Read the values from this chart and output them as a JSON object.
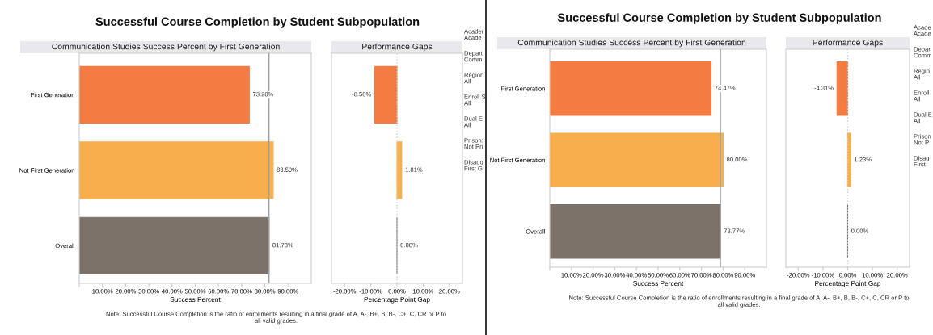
{
  "chart_data": [
    {
      "type": "bar",
      "orientation": "horizontal",
      "title": "Successful Course Completion by Student Subpopulation",
      "subtitle": "Communication Studies Success Percent by First Generation",
      "xlabel": "Success Percent",
      "categories": [
        "First Generation",
        "Not First Generation",
        "Overall"
      ],
      "values": [
        73.28,
        83.59,
        81.78
      ],
      "colors": [
        "#f47b42",
        "#f8ae4c",
        "#7c7269"
      ],
      "value_labels": [
        "73.28%",
        "83.59%",
        "81.78%"
      ],
      "xlim": [
        0,
        100
      ],
      "xticks": [
        {
          "value": 0,
          "label": null
        },
        {
          "value": 10,
          "label": "10.00%"
        },
        {
          "value": 20,
          "label": "20.00%"
        },
        {
          "value": 30,
          "label": "30.00%"
        },
        {
          "value": 40,
          "label": "40.00%"
        },
        {
          "value": 50,
          "label": "50.00%"
        },
        {
          "value": 60,
          "label": "60.00%"
        },
        {
          "value": 70,
          "label": "70.00%"
        },
        {
          "value": 80,
          "label": "80.00%"
        },
        {
          "value": 90,
          "label": "90.00%"
        }
      ],
      "ref_lines": [
        {
          "axis": "x",
          "value": 81.78,
          "color": "#a0a0a0"
        }
      ],
      "annotations": [
        "Note: Successful Course Completion is the ratio of enrollments resulting in a final grade of A, A-, B+, B, B-, C+, C, CR or P to\nall valid grades."
      ]
    },
    {
      "type": "bar",
      "orientation": "horizontal",
      "subtitle": "Performance Gaps",
      "xlabel": "Percentage Point Gap",
      "categories": [
        null,
        null,
        null
      ],
      "values": [
        -8.5,
        1.81,
        0.0
      ],
      "colors": [
        "#f47b42",
        "#f8ae4c",
        "#7c7269"
      ],
      "value_labels": [
        "-8.50%",
        "1.81%",
        "0.00%"
      ],
      "xlim": [
        -25,
        25
      ],
      "xticks": [
        {
          "value": -20,
          "label": "-20.00%"
        },
        {
          "value": -10,
          "label": "-10.00%"
        },
        {
          "value": 0,
          "label": "0.00%"
        },
        {
          "value": 10,
          "label": "10.00%"
        },
        {
          "value": 20,
          "label": "20.00%"
        }
      ],
      "ref_lines": [
        {
          "axis": "x",
          "value": 0,
          "color": "#d0d0d0",
          "line_style": "dotted"
        }
      ],
      "annotations": [
        "Acader\nAcade",
        "Depart\nComm",
        "Region\nAll",
        "Enroll S\nAll",
        "Dual E\nAll",
        "Prison:\nNot Pri",
        "Disagg\nFirst G"
      ]
    },
    {
      "type": "bar",
      "orientation": "horizontal",
      "title": "Successful Course Completion by Student Subpopulation",
      "subtitle": "Communication Studies Success Percent by First Generation",
      "xlabel": "Success Percent",
      "categories": [
        "First Generation",
        "Not First Generation",
        "Overall"
      ],
      "values": [
        74.47,
        80.0,
        78.77
      ],
      "colors": [
        "#f47b42",
        "#f8ae4c",
        "#7c7269"
      ],
      "value_labels": [
        "74.47%",
        "80.00%",
        "78.77%"
      ],
      "xlim": [
        0,
        100
      ],
      "xticks": [
        {
          "value": 0,
          "label": null
        },
        {
          "value": 10,
          "label": "10.00%"
        },
        {
          "value": 20,
          "label": "20.00%"
        },
        {
          "value": 30,
          "label": "30.00%"
        },
        {
          "value": 40,
          "label": "40.00%"
        },
        {
          "value": 50,
          "label": "50.00%"
        },
        {
          "value": 60,
          "label": "60.00%"
        },
        {
          "value": 70,
          "label": "70.00%"
        },
        {
          "value": 80,
          "label": "80.00%"
        },
        {
          "value": 90,
          "label": "90.00%"
        }
      ],
      "ref_lines": [
        {
          "axis": "x",
          "value": 78.77,
          "color": "#a0a0a0"
        }
      ],
      "annotations": [
        "Note: Successful Course Completion is the ratio of enrollments resulting in a final grade of A, A-, B+, B, B-, C+, C, CR or P to\nall valid grades."
      ]
    },
    {
      "type": "bar",
      "orientation": "horizontal",
      "subtitle": "Performance Gaps",
      "xlabel": "Percentage Point Gap",
      "categories": [
        null,
        null,
        null
      ],
      "values": [
        -4.31,
        1.23,
        0.0
      ],
      "colors": [
        "#f47b42",
        "#f8ae4c",
        "#7c7269"
      ],
      "value_labels": [
        "-4.31%",
        "1.23%",
        "0.00%"
      ],
      "xlim": [
        -25,
        25
      ],
      "xticks": [
        {
          "value": -20,
          "label": "-20.00%"
        },
        {
          "value": -10,
          "label": "-10.00%"
        },
        {
          "value": 0,
          "label": "0.00%"
        },
        {
          "value": 10,
          "label": "10.00%"
        },
        {
          "value": 20,
          "label": "20.00%"
        }
      ],
      "ref_lines": [
        {
          "axis": "x",
          "value": 0,
          "color": "#d0d0d0",
          "line_style": "dotted"
        }
      ],
      "annotations": [
        "Acade\nAcade",
        "Depar\nComm",
        "Regio\nAll",
        "Enroll\nAll",
        "Dual E\nAll",
        "Prison\nNot P",
        "Disag\nFirst"
      ]
    }
  ]
}
